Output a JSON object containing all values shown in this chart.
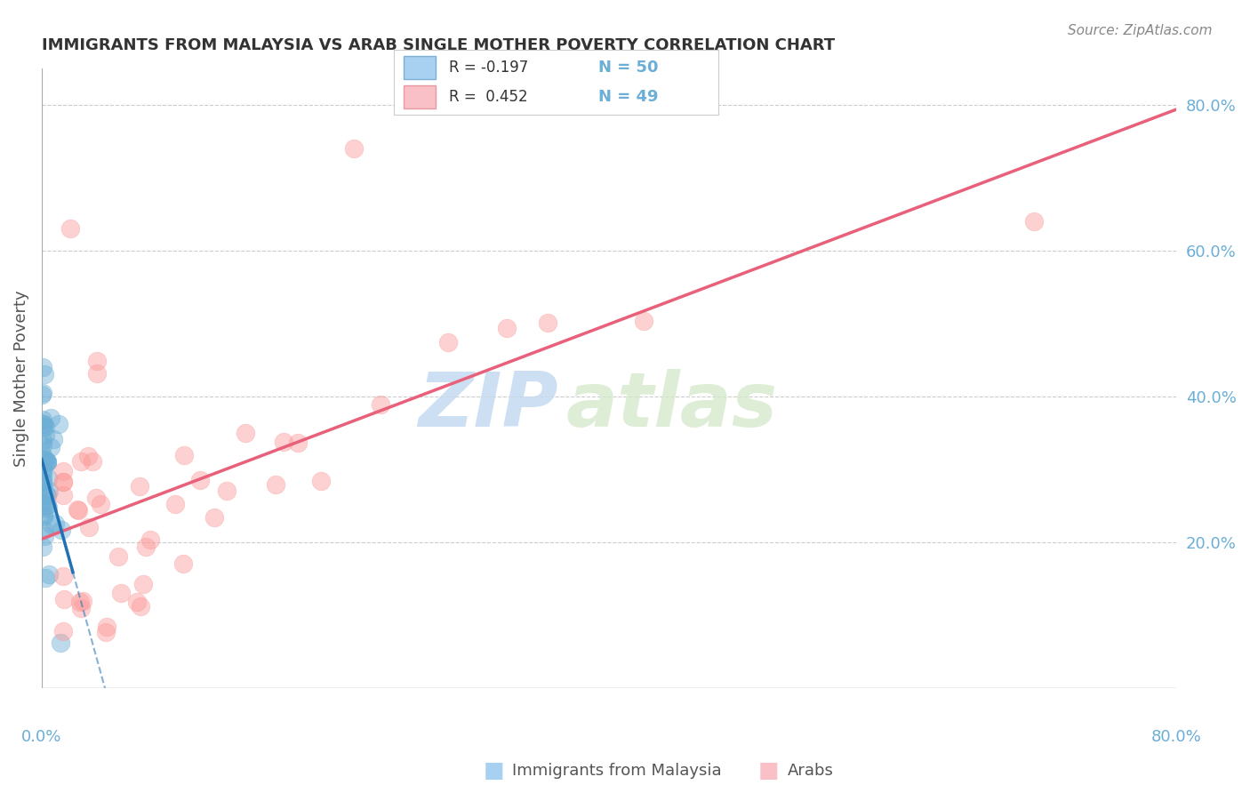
{
  "title": "IMMIGRANTS FROM MALAYSIA VS ARAB SINGLE MOTHER POVERTY CORRELATION CHART",
  "source": "Source: ZipAtlas.com",
  "ylabel": "Single Mother Poverty",
  "legend_blue_r": "R = -0.197",
  "legend_blue_n": "N = 50",
  "legend_pink_r": "R =  0.452",
  "legend_pink_n": "N = 49",
  "watermark_zip": "ZIP",
  "watermark_atlas": "atlas",
  "background_color": "#ffffff",
  "blue_color": "#6baed6",
  "pink_color": "#fb9a99",
  "blue_line_color": "#2171b5",
  "pink_line_color": "#e8607a",
  "grid_color": "#cccccc",
  "right_axis_color": "#6baed6",
  "xlim": [
    0.0,
    0.8
  ],
  "ylim": [
    0.0,
    0.85
  ],
  "yticks": [
    0.2,
    0.4,
    0.6,
    0.8
  ],
  "ytick_labels": [
    "20.0%",
    "40.0%",
    "60.0%",
    "80.0%"
  ]
}
